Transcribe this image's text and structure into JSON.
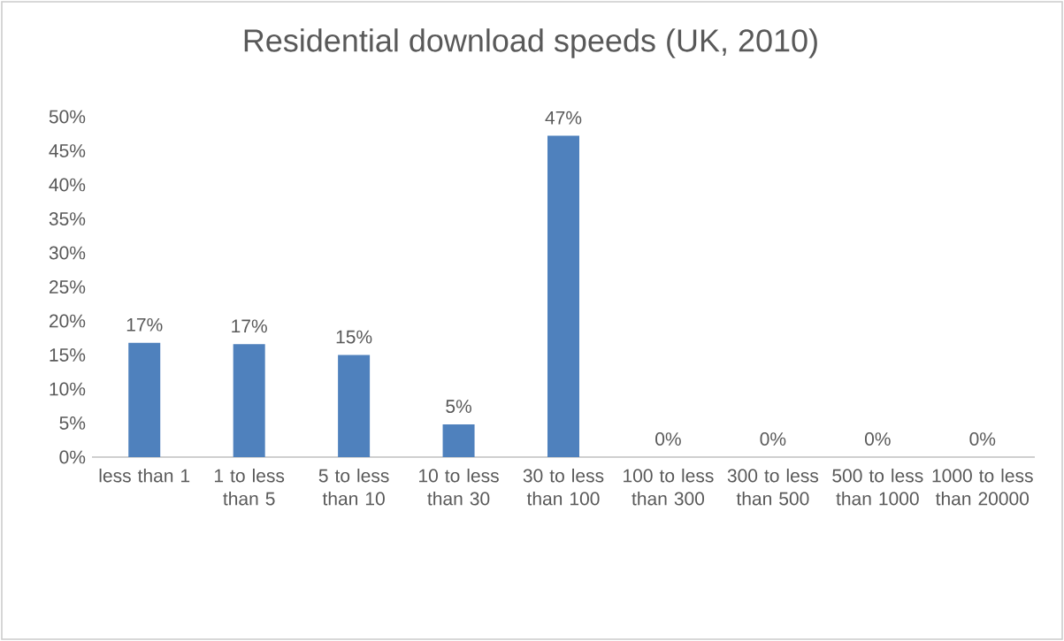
{
  "chart_data": {
    "type": "bar",
    "title": "Residential download speeds (UK, 2010)",
    "categories": [
      "less than 1",
      "1  to less than 5",
      "5 to less than 10",
      "10 to less than 30",
      "30 to less than 100",
      "100 to less than 300",
      "300 to less than 500",
      "500 to less than 1000",
      "1000 to less than 20000"
    ],
    "values": [
      16.8,
      16.6,
      15.0,
      4.8,
      47.2,
      0,
      0,
      0,
      0
    ],
    "value_labels": [
      "17%",
      "17%",
      "15%",
      "5%",
      "47%",
      "0%",
      "0%",
      "0%",
      "0%"
    ],
    "color": "#4f81bd",
    "ylim": [
      0,
      50
    ],
    "yticks": [
      {
        "value": 0,
        "label": "0%"
      },
      {
        "value": 5,
        "label": "5%"
      },
      {
        "value": 10,
        "label": "10%"
      },
      {
        "value": 15,
        "label": "15%"
      },
      {
        "value": 20,
        "label": "20%"
      },
      {
        "value": 25,
        "label": "25%"
      },
      {
        "value": 30,
        "label": "30%"
      },
      {
        "value": 35,
        "label": "35%"
      },
      {
        "value": 40,
        "label": "40%"
      },
      {
        "value": 45,
        "label": "45%"
      },
      {
        "value": 50,
        "label": "50%"
      }
    ],
    "grid": false,
    "legend": false
  }
}
